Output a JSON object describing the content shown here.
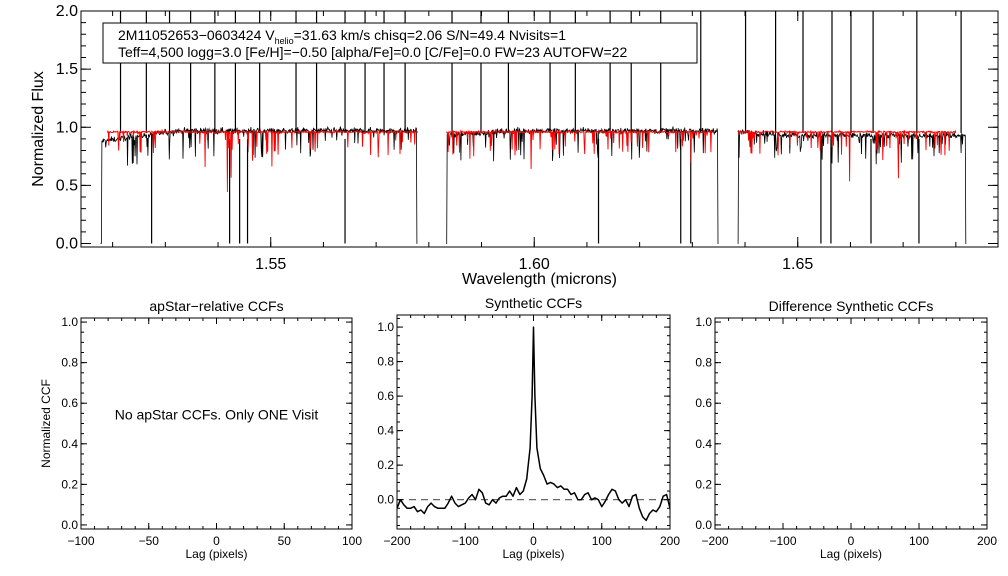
{
  "header": {
    "line1_a": "2M11052653−0603424  V",
    "line1_sub": "helio",
    "line1_b": "=31.63 km/s  chisq=2.06  S/N=49.4  Nvisits=1",
    "line2": "Teff=4,500 logg=3.0 [Fe/H]=−0.50 [alpha/Fe]=0.0 [C/Fe]=0.0 FW=23 AUTOFW=22"
  },
  "colors": {
    "observed": "#000000",
    "model": "#ff0000",
    "zero_line": "#666666"
  },
  "chart_data": [
    {
      "type": "line",
      "title": "",
      "xlabel": "Wavelength (microns)",
      "ylabel": "Normalized Flux",
      "xlim": [
        1.514,
        1.688
      ],
      "ylim": [
        -0.03,
        2.0
      ],
      "xticks": [
        {
          "v": 1.55,
          "label": "1.55"
        },
        {
          "v": 1.6,
          "label": "1.60"
        },
        {
          "v": 1.65,
          "label": "1.65"
        }
      ],
      "yticks": [
        {
          "v": 0,
          "label": "0.0"
        },
        {
          "v": 0.5,
          "label": "0.5"
        },
        {
          "v": 1.0,
          "label": "1.0"
        },
        {
          "v": 1.5,
          "label": "1.5"
        },
        {
          "v": 2.0,
          "label": "2.0"
        }
      ],
      "series": [
        {
          "name": "observed spectrum",
          "color": "#000000",
          "chips": [
            [
              1.5177,
              1.5779
            ],
            [
              1.5833,
              1.635
            ],
            [
              1.6386,
              1.682
            ]
          ],
          "continuum": [
            [
              0.88,
              0.97
            ],
            [
              0.93,
              0.97
            ],
            [
              0.96,
              0.93
            ]
          ],
          "spikes_to_top": [
            1.5215,
            1.5264,
            1.5308,
            1.5348,
            1.5394,
            1.5433,
            1.5479,
            1.5548,
            1.5587,
            1.5641,
            1.5679,
            1.5715,
            1.5755,
            1.5844,
            1.5899,
            1.5951,
            1.603,
            1.6078,
            1.6144,
            1.6184,
            1.624,
            1.6316,
            1.6401,
            1.6458,
            1.651,
            1.6565,
            1.6601,
            1.6643,
            1.6726,
            1.681
          ],
          "drops_to_zero": [
            1.5274,
            1.5422,
            1.5441,
            1.5456,
            1.5641,
            1.6122,
            1.6278,
            1.6297,
            1.6544,
            1.6563,
            1.6639,
            1.673
          ]
        },
        {
          "name": "model spectrum",
          "color": "#ff0000",
          "chips": [
            [
              1.519,
              1.5779
            ],
            [
              1.5833,
              1.634
            ],
            [
              1.6386,
              1.68
            ]
          ],
          "continuum_level": 0.96
        }
      ]
    },
    {
      "type": "line",
      "title": "apStar−relative CCFs",
      "xlabel": "Lag (pixels)",
      "ylabel": "Normalized CCF",
      "xlim": [
        -100,
        100
      ],
      "ylim": [
        -0.02,
        1.02
      ],
      "xticks": [
        {
          "v": -100,
          "label": "−100"
        },
        {
          "v": -50,
          "label": "−50"
        },
        {
          "v": 0,
          "label": "0"
        },
        {
          "v": 50,
          "label": "50"
        },
        {
          "v": 100,
          "label": "100"
        }
      ],
      "yticks": [
        {
          "v": 0,
          "label": "0.0"
        },
        {
          "v": 0.2,
          "label": "0.2"
        },
        {
          "v": 0.4,
          "label": "0.4"
        },
        {
          "v": 0.6,
          "label": "0.6"
        },
        {
          "v": 0.8,
          "label": "0.8"
        },
        {
          "v": 1.0,
          "label": "1.0"
        }
      ],
      "annotation": "No apStar CCFs.  Only ONE Visit",
      "series": []
    },
    {
      "type": "line",
      "title": "Synthetic CCFs",
      "xlabel": "Lag (pixels)",
      "ylabel": "",
      "xlim": [
        -200,
        200
      ],
      "ylim": [
        -0.17,
        1.07
      ],
      "xticks": [
        {
          "v": -200,
          "label": "−200"
        },
        {
          "v": -100,
          "label": "−100"
        },
        {
          "v": 0,
          "label": "0"
        },
        {
          "v": 100,
          "label": "100"
        },
        {
          "v": 200,
          "label": "200"
        }
      ],
      "yticks": [
        {
          "v": 0,
          "label": "0.0"
        },
        {
          "v": 0.2,
          "label": "0.2"
        },
        {
          "v": 0.4,
          "label": "0.4"
        },
        {
          "v": 0.6,
          "label": "0.6"
        },
        {
          "v": 0.8,
          "label": "0.8"
        },
        {
          "v": 1.0,
          "label": "1.0"
        }
      ],
      "hline": 0.0,
      "series": [
        {
          "name": "synthetic CCF",
          "color": "#000000",
          "x": [
            -200,
            -195,
            -190,
            -185,
            -180,
            -175,
            -170,
            -165,
            -160,
            -155,
            -150,
            -145,
            -140,
            -135,
            -130,
            -125,
            -120,
            -115,
            -110,
            -105,
            -100,
            -95,
            -90,
            -85,
            -80,
            -75,
            -70,
            -65,
            -60,
            -55,
            -50,
            -45,
            -40,
            -35,
            -30,
            -25,
            -20,
            -15,
            -10,
            -5,
            -2,
            0,
            2,
            5,
            10,
            15,
            20,
            25,
            30,
            35,
            40,
            45,
            50,
            55,
            60,
            65,
            70,
            75,
            80,
            85,
            90,
            95,
            100,
            105,
            110,
            115,
            120,
            125,
            130,
            135,
            140,
            145,
            150,
            155,
            160,
            165,
            170,
            175,
            180,
            185,
            190,
            195,
            200
          ],
          "y": [
            -0.05,
            0.0,
            -0.03,
            -0.05,
            -0.05,
            -0.04,
            -0.07,
            -0.06,
            -0.08,
            -0.04,
            -0.02,
            -0.04,
            -0.05,
            -0.05,
            -0.05,
            -0.02,
            0.02,
            -0.02,
            -0.04,
            -0.03,
            -0.02,
            0.01,
            0.03,
            0.0,
            0.06,
            0.04,
            -0.02,
            -0.03,
            0.0,
            -0.02,
            0.01,
            0.02,
            0.02,
            0.05,
            0.02,
            0.07,
            0.03,
            0.05,
            0.12,
            0.3,
            0.6,
            1.0,
            0.6,
            0.3,
            0.18,
            0.14,
            0.09,
            0.1,
            0.09,
            0.07,
            0.08,
            0.06,
            0.06,
            0.03,
            0.04,
            0.0,
            0.0,
            0.03,
            0.04,
            0.0,
            0.01,
            0.0,
            -0.04,
            -0.01,
            0.03,
            0.06,
            0.05,
            0.0,
            -0.02,
            0.0,
            -0.04,
            0.02,
            0.03,
            -0.05,
            -0.1,
            -0.12,
            -0.08,
            -0.06,
            -0.07,
            -0.04,
            0.02,
            0.03,
            -0.05
          ]
        }
      ]
    },
    {
      "type": "line",
      "title": "Difference Synthetic CCFs",
      "xlabel": "Lag (pixels)",
      "ylabel": "",
      "xlim": [
        -200,
        200
      ],
      "ylim": [
        -0.02,
        1.02
      ],
      "xticks": [
        {
          "v": -200,
          "label": "−200"
        },
        {
          "v": -100,
          "label": "−100"
        },
        {
          "v": 0,
          "label": "0"
        },
        {
          "v": 100,
          "label": "100"
        },
        {
          "v": 200,
          "label": "200"
        }
      ],
      "yticks": [
        {
          "v": 0,
          "label": "0.0"
        },
        {
          "v": 0.2,
          "label": "0.2"
        },
        {
          "v": 0.4,
          "label": "0.4"
        },
        {
          "v": 0.6,
          "label": "0.6"
        },
        {
          "v": 0.8,
          "label": "0.8"
        },
        {
          "v": 1.0,
          "label": "1.0"
        }
      ],
      "series": []
    }
  ]
}
